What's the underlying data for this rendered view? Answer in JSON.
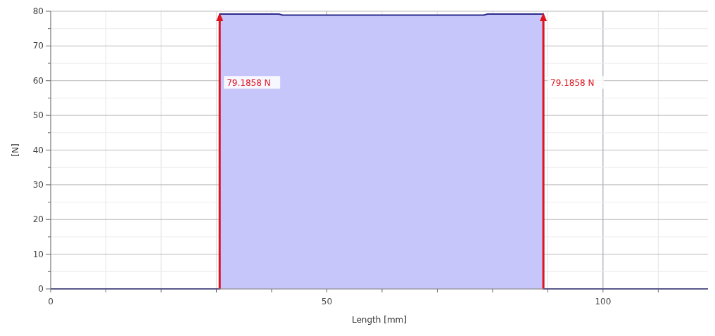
{
  "chart_data": {
    "type": "area",
    "xlabel": "Length [mm]",
    "ylabel": "[N]",
    "series": [
      {
        "color": "#2b2b8c",
        "x": [
          0,
          30.6,
          30.6,
          41.3,
          42,
          78.4,
          79.1,
          89.2,
          89.2,
          119
        ],
        "values": [
          0,
          0,
          79.2,
          79.2,
          78.9,
          78.9,
          79.2,
          79.2,
          0,
          0
        ]
      }
    ],
    "xlim": [
      0,
      119
    ],
    "xticks": [
      0,
      {
        "value": 10,
        "label": null
      },
      {
        "value": 20,
        "label": null
      },
      {
        "value": 30,
        "label": null
      },
      {
        "value": 40,
        "label": null
      },
      50,
      {
        "value": 60,
        "label": null
      },
      {
        "value": 70,
        "label": null
      },
      {
        "value": 80,
        "label": null
      },
      {
        "value": 90,
        "label": null
      },
      100,
      {
        "value": 110,
        "label": null
      }
    ],
    "ylim": [
      0,
      80
    ],
    "yticks": [
      0,
      {
        "value": 5,
        "label": null
      },
      10,
      {
        "value": 15,
        "label": null
      },
      20,
      {
        "value": 25,
        "label": null
      },
      30,
      {
        "value": 35,
        "label": null
      },
      40,
      {
        "value": 45,
        "label": null
      },
      50,
      {
        "value": 55,
        "label": null
      },
      60,
      {
        "value": 65,
        "label": null
      },
      70,
      {
        "value": 75,
        "label": null
      },
      80
    ],
    "grid": true,
    "ref_lines": [
      {
        "axis": "x",
        "value": 30.6,
        "label": "79.1858 N",
        "color": "#e0141e"
      },
      {
        "axis": "x",
        "value": 89.2,
        "label": "79.1858 N",
        "color": "#e0141e"
      }
    ]
  }
}
